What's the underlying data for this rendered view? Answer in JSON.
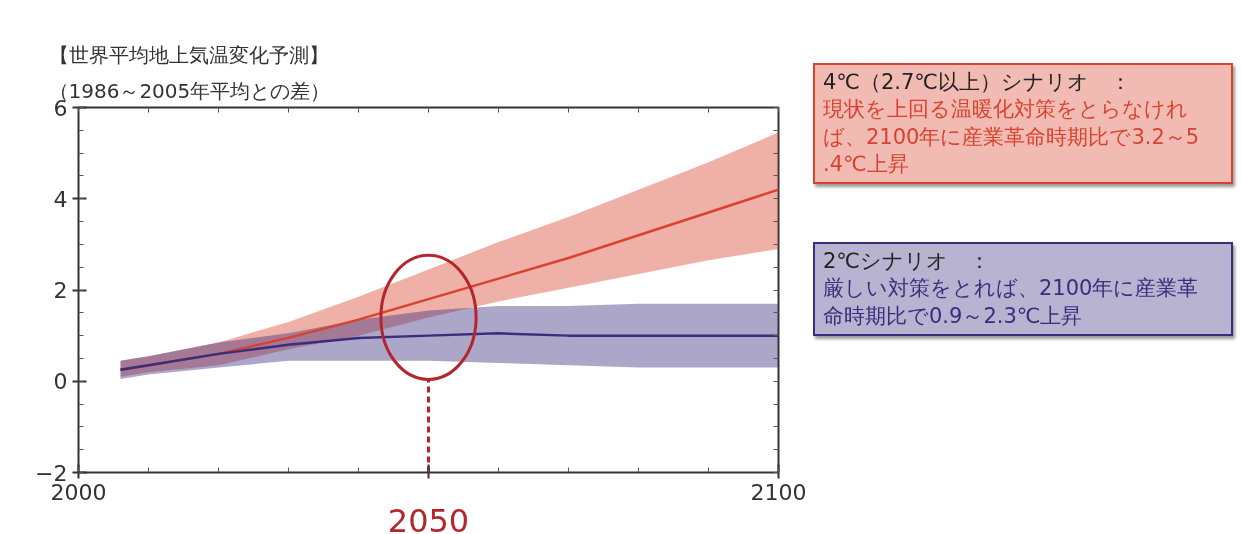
{
  "chart_data": {
    "type": "line",
    "title": "【世界平均地上気温変化予測】",
    "subtitle": "（1986～2005年平均との差）",
    "x": [
      2006,
      2010,
      2020,
      2030,
      2040,
      2050,
      2060,
      2070,
      2080,
      2090,
      2100
    ],
    "series": [
      {
        "color": "#d9432e",
        "values": [
          0.25,
          0.35,
          0.6,
          0.95,
          1.35,
          1.8,
          2.25,
          2.7,
          3.2,
          3.7,
          4.2
        ],
        "lower": [
          0.1,
          0.2,
          0.35,
          0.7,
          1.0,
          1.4,
          1.75,
          2.05,
          2.35,
          2.65,
          2.9
        ],
        "upper": [
          0.45,
          0.55,
          0.85,
          1.3,
          1.85,
          2.45,
          3.05,
          3.6,
          4.2,
          4.8,
          5.45
        ]
      },
      {
        "color": "#3a2d7c",
        "values": [
          0.25,
          0.35,
          0.6,
          0.8,
          0.95,
          1.0,
          1.05,
          1.0,
          1.0,
          1.0,
          1.0
        ],
        "lower": [
          0.05,
          0.15,
          0.3,
          0.45,
          0.45,
          0.45,
          0.4,
          0.35,
          0.3,
          0.3,
          0.3
        ],
        "upper": [
          0.45,
          0.55,
          0.85,
          1.05,
          1.35,
          1.55,
          1.65,
          1.65,
          1.7,
          1.7,
          1.7
        ]
      }
    ],
    "xlim": [
      2000,
      2100
    ],
    "xticks": [
      2000,
      {
        "value": 2050,
        "label": null
      },
      2100
    ],
    "ylim": [
      -2,
      6
    ],
    "yticks": [
      -2,
      0,
      2,
      4,
      6
    ],
    "marker": "none",
    "line_style": "solid",
    "ref_lines": [
      {
        "axis": "x",
        "value": 2050,
        "label": "2050",
        "color": "#b5262b",
        "line_style": "dashed"
      }
    ],
    "annotations": [
      "4℃（2.7℃以上）シナリオ　：",
      "現状を上回る温暖化対策をとらなければ、2100年に産業革命時期比で3.2～5.4℃上昇",
      "2℃シナリオ　：",
      "厳しい対策をとれば、2100年に産業革命時期比で0.9～2.3℃上昇"
    ]
  }
}
